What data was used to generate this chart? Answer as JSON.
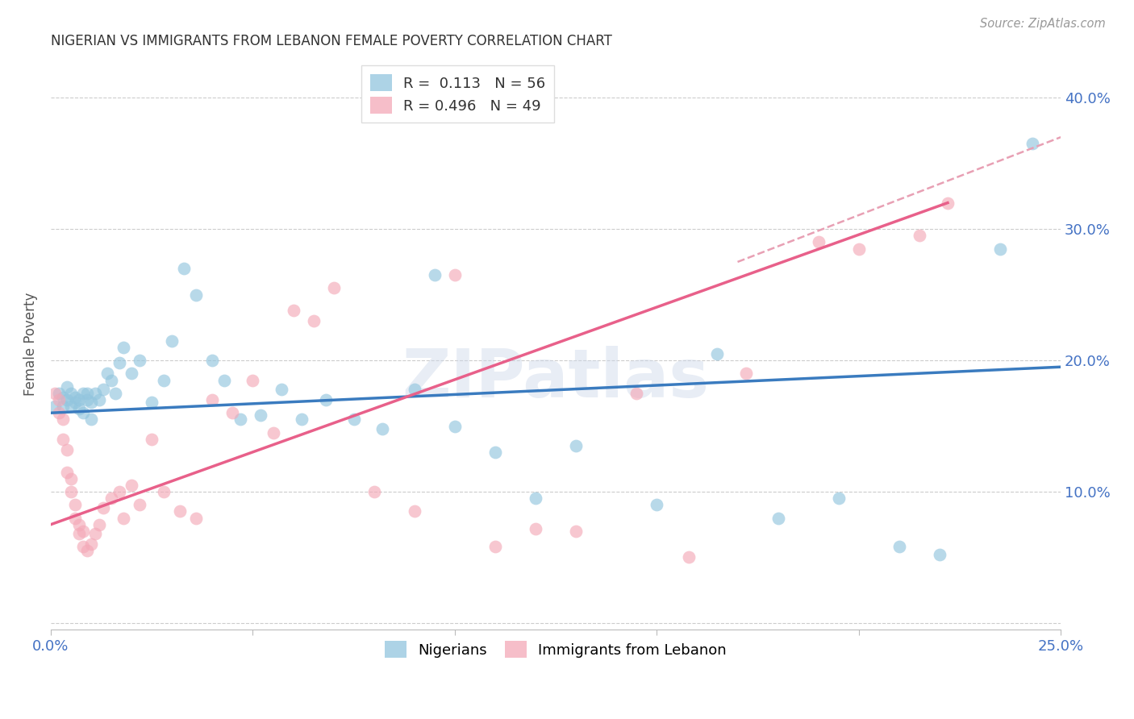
{
  "title": "NIGERIAN VS IMMIGRANTS FROM LEBANON FEMALE POVERTY CORRELATION CHART",
  "source": "Source: ZipAtlas.com",
  "ylabel": "Female Poverty",
  "watermark": "ZIPatlas",
  "xlim": [
    0.0,
    0.25
  ],
  "ylim": [
    -0.005,
    0.43
  ],
  "yticks": [
    0.0,
    0.1,
    0.2,
    0.3,
    0.4
  ],
  "ytick_labels": [
    "",
    "10.0%",
    "20.0%",
    "30.0%",
    "40.0%"
  ],
  "xticks": [
    0.0,
    0.05,
    0.1,
    0.15,
    0.2,
    0.25
  ],
  "nigerian_R": 0.113,
  "nigerian_N": 56,
  "lebanon_R": 0.496,
  "lebanon_N": 49,
  "blue_color": "#92c5de",
  "pink_color": "#f4a9b8",
  "blue_line_color": "#3a7bbf",
  "pink_line_color": "#e8608a",
  "dashed_line_color": "#e8a0b4",
  "nigerian_x": [
    0.001,
    0.002,
    0.003,
    0.003,
    0.004,
    0.004,
    0.005,
    0.005,
    0.006,
    0.006,
    0.007,
    0.007,
    0.008,
    0.008,
    0.009,
    0.009,
    0.01,
    0.01,
    0.011,
    0.012,
    0.013,
    0.014,
    0.015,
    0.016,
    0.017,
    0.018,
    0.02,
    0.022,
    0.025,
    0.028,
    0.03,
    0.033,
    0.036,
    0.04,
    0.043,
    0.047,
    0.052,
    0.057,
    0.062,
    0.068,
    0.075,
    0.082,
    0.09,
    0.095,
    0.1,
    0.11,
    0.12,
    0.13,
    0.15,
    0.165,
    0.18,
    0.195,
    0.21,
    0.22,
    0.235,
    0.243
  ],
  "nigerian_y": [
    0.165,
    0.175,
    0.172,
    0.165,
    0.18,
    0.17,
    0.175,
    0.165,
    0.172,
    0.168,
    0.17,
    0.163,
    0.175,
    0.16,
    0.17,
    0.175,
    0.168,
    0.155,
    0.175,
    0.17,
    0.178,
    0.19,
    0.185,
    0.175,
    0.198,
    0.21,
    0.19,
    0.2,
    0.168,
    0.185,
    0.215,
    0.27,
    0.25,
    0.2,
    0.185,
    0.155,
    0.158,
    0.178,
    0.155,
    0.17,
    0.155,
    0.148,
    0.178,
    0.265,
    0.15,
    0.13,
    0.095,
    0.135,
    0.09,
    0.205,
    0.08,
    0.095,
    0.058,
    0.052,
    0.285,
    0.365
  ],
  "lebanon_x": [
    0.001,
    0.002,
    0.002,
    0.003,
    0.003,
    0.004,
    0.004,
    0.005,
    0.005,
    0.006,
    0.006,
    0.007,
    0.007,
    0.008,
    0.008,
    0.009,
    0.01,
    0.011,
    0.012,
    0.013,
    0.015,
    0.017,
    0.018,
    0.02,
    0.022,
    0.025,
    0.028,
    0.032,
    0.036,
    0.04,
    0.045,
    0.05,
    0.055,
    0.06,
    0.065,
    0.07,
    0.08,
    0.09,
    0.1,
    0.11,
    0.12,
    0.13,
    0.145,
    0.158,
    0.172,
    0.19,
    0.2,
    0.215,
    0.222
  ],
  "lebanon_y": [
    0.175,
    0.17,
    0.16,
    0.155,
    0.14,
    0.132,
    0.115,
    0.11,
    0.1,
    0.09,
    0.08,
    0.075,
    0.068,
    0.07,
    0.058,
    0.055,
    0.06,
    0.068,
    0.075,
    0.088,
    0.095,
    0.1,
    0.08,
    0.105,
    0.09,
    0.14,
    0.1,
    0.085,
    0.08,
    0.17,
    0.16,
    0.185,
    0.145,
    0.238,
    0.23,
    0.255,
    0.1,
    0.085,
    0.265,
    0.058,
    0.072,
    0.07,
    0.175,
    0.05,
    0.19,
    0.29,
    0.285,
    0.295,
    0.32
  ],
  "nigerian_trend_x": [
    0.0,
    0.25
  ],
  "nigerian_trend_y": [
    0.16,
    0.195
  ],
  "lebanon_trend_x": [
    0.0,
    0.222
  ],
  "lebanon_trend_y": [
    0.075,
    0.32
  ],
  "dashed_trend_x": [
    0.17,
    0.25
  ],
  "dashed_trend_y": [
    0.275,
    0.37
  ]
}
